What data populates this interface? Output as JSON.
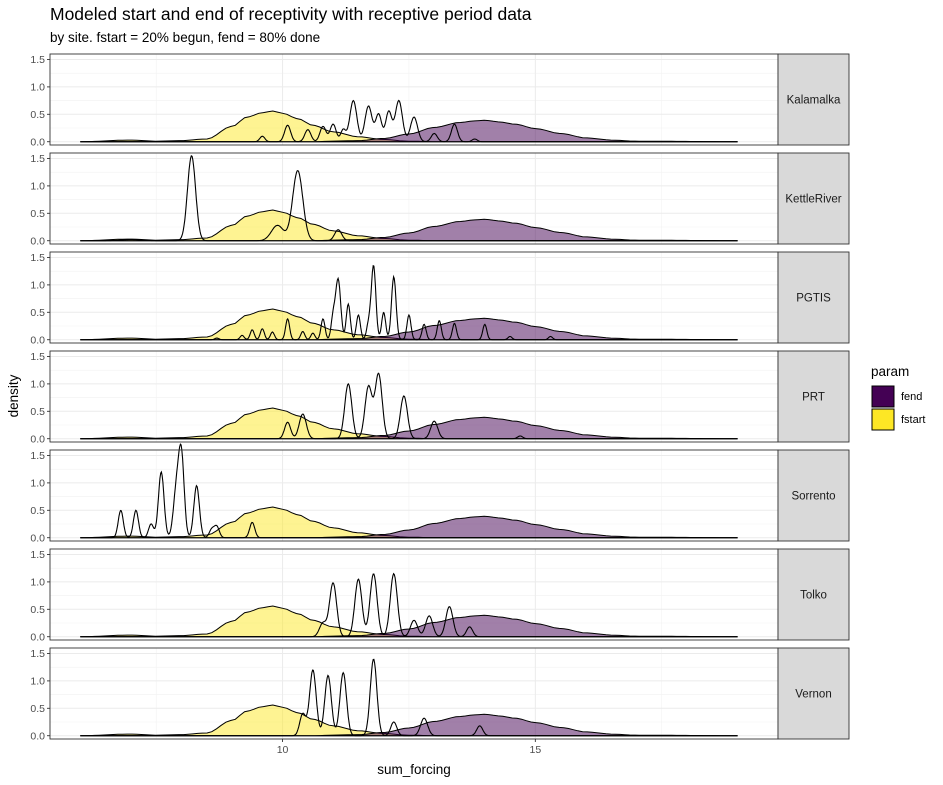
{
  "chart_data": {
    "type": "density",
    "title": "Modeled start and end of receptivity with receptive period data",
    "subtitle": "by site. fstart = 20% begun, fend = 80% done",
    "xlabel": "sum_forcing",
    "ylabel": "density",
    "xlim": [
      5.4,
      19.8
    ],
    "ylim": [
      -0.06,
      1.6
    ],
    "x_ticks": [
      10,
      15
    ],
    "y_ticks": [
      0.0,
      0.5,
      1.0,
      1.5
    ],
    "y_tick_labels": [
      "0.0",
      "0.5",
      "1.0",
      "1.5"
    ],
    "facets": [
      "Kalamalka",
      "KettleRiver",
      "PGTIS",
      "PRT",
      "Sorrento",
      "Tolko",
      "Vernon"
    ],
    "legend": {
      "title": "param",
      "position": "right",
      "entries": [
        {
          "label": "fend",
          "color": "#440154"
        },
        {
          "label": "fstart",
          "color": "#FDE725"
        }
      ]
    },
    "modeled_series": [
      {
        "name": "fstart",
        "color": "#FDE725",
        "alpha": 0.5,
        "x": [
          6.0,
          7.0,
          7.5,
          8.0,
          8.5,
          9.0,
          9.3,
          9.6,
          9.8,
          10.0,
          10.3,
          10.6,
          11.0,
          11.5,
          12.0,
          12.5,
          13.0,
          19.0
        ],
        "y": [
          0.0,
          0.03,
          0.01,
          0.02,
          0.05,
          0.28,
          0.45,
          0.53,
          0.56,
          0.52,
          0.42,
          0.3,
          0.18,
          0.09,
          0.04,
          0.01,
          0.0,
          0.0
        ]
      },
      {
        "name": "fend",
        "color": "#440154",
        "alpha": 0.5,
        "x": [
          6.0,
          10.5,
          11.5,
          12.0,
          12.5,
          13.0,
          13.5,
          13.8,
          14.0,
          14.3,
          14.6,
          15.0,
          15.5,
          16.0,
          16.5,
          17.0,
          19.0
        ],
        "y": [
          0.0,
          0.0,
          0.02,
          0.06,
          0.14,
          0.26,
          0.35,
          0.38,
          0.39,
          0.36,
          0.32,
          0.24,
          0.15,
          0.07,
          0.03,
          0.01,
          0.0
        ]
      }
    ],
    "observed_peaks": {
      "Kalamalka": [
        [
          9.6,
          0.1,
          0.05
        ],
        [
          10.1,
          0.3,
          0.06
        ],
        [
          10.5,
          0.22,
          0.06
        ],
        [
          10.8,
          0.28,
          0.06
        ],
        [
          11.0,
          0.32,
          0.06
        ],
        [
          11.2,
          0.22,
          0.05
        ],
        [
          11.4,
          0.75,
          0.07
        ],
        [
          11.7,
          0.65,
          0.07
        ],
        [
          11.9,
          0.5,
          0.06
        ],
        [
          12.1,
          0.55,
          0.06
        ],
        [
          12.3,
          0.75,
          0.07
        ],
        [
          12.6,
          0.45,
          0.07
        ],
        [
          13.0,
          0.15,
          0.06
        ],
        [
          13.4,
          0.32,
          0.06
        ],
        [
          13.8,
          0.05,
          0.05
        ]
      ],
      "KettleRiver": [
        [
          8.2,
          1.55,
          0.08
        ],
        [
          10.3,
          1.28,
          0.1
        ],
        [
          9.9,
          0.28,
          0.12
        ],
        [
          11.1,
          0.2,
          0.07
        ],
        [
          7.0,
          0.02,
          0.2
        ]
      ],
      "PGTIS": [
        [
          8.7,
          0.03,
          0.04
        ],
        [
          9.2,
          0.08,
          0.04
        ],
        [
          9.4,
          0.18,
          0.04
        ],
        [
          9.6,
          0.2,
          0.04
        ],
        [
          9.8,
          0.14,
          0.04
        ],
        [
          10.1,
          0.38,
          0.04
        ],
        [
          10.4,
          0.15,
          0.04
        ],
        [
          10.6,
          0.12,
          0.04
        ],
        [
          10.8,
          0.38,
          0.04
        ],
        [
          11.0,
          0.4,
          0.04
        ],
        [
          11.1,
          1.1,
          0.05
        ],
        [
          11.3,
          0.65,
          0.04
        ],
        [
          11.5,
          0.45,
          0.04
        ],
        [
          11.7,
          0.28,
          0.04
        ],
        [
          11.8,
          1.35,
          0.045
        ],
        [
          12.0,
          0.5,
          0.04
        ],
        [
          12.2,
          1.15,
          0.045
        ],
        [
          12.5,
          0.45,
          0.04
        ],
        [
          12.8,
          0.28,
          0.04
        ],
        [
          13.1,
          0.35,
          0.04
        ],
        [
          13.4,
          0.3,
          0.04
        ],
        [
          14.0,
          0.28,
          0.04
        ],
        [
          14.5,
          0.06,
          0.04
        ],
        [
          15.3,
          0.06,
          0.04
        ]
      ],
      "PRT": [
        [
          10.1,
          0.3,
          0.06
        ],
        [
          10.4,
          0.45,
          0.07
        ],
        [
          11.3,
          1.0,
          0.07
        ],
        [
          11.7,
          0.95,
          0.07
        ],
        [
          11.9,
          1.18,
          0.07
        ],
        [
          12.4,
          0.78,
          0.07
        ],
        [
          13.0,
          0.32,
          0.07
        ],
        [
          14.7,
          0.05,
          0.05
        ]
      ],
      "Sorrento": [
        [
          6.8,
          0.5,
          0.05
        ],
        [
          7.1,
          0.5,
          0.05
        ],
        [
          7.6,
          1.2,
          0.055
        ],
        [
          7.9,
          0.85,
          0.06
        ],
        [
          8.0,
          1.45,
          0.055
        ],
        [
          8.3,
          0.95,
          0.055
        ],
        [
          8.7,
          0.2,
          0.05
        ],
        [
          9.4,
          0.28,
          0.05
        ],
        [
          7.4,
          0.25,
          0.05
        ],
        [
          8.6,
          0.15,
          0.05
        ]
      ],
      "Tolko": [
        [
          11.0,
          0.98,
          0.07
        ],
        [
          11.5,
          1.05,
          0.07
        ],
        [
          11.8,
          1.15,
          0.07
        ],
        [
          12.2,
          1.15,
          0.07
        ],
        [
          12.9,
          0.38,
          0.07
        ],
        [
          13.3,
          0.55,
          0.07
        ],
        [
          13.7,
          0.18,
          0.06
        ],
        [
          10.8,
          0.25,
          0.07
        ],
        [
          12.6,
          0.3,
          0.07
        ]
      ],
      "Vernon": [
        [
          10.4,
          0.4,
          0.06
        ],
        [
          10.6,
          1.2,
          0.065
        ],
        [
          10.9,
          1.1,
          0.065
        ],
        [
          11.2,
          1.15,
          0.065
        ],
        [
          11.8,
          1.4,
          0.065
        ],
        [
          12.2,
          0.25,
          0.06
        ],
        [
          12.8,
          0.32,
          0.07
        ],
        [
          13.9,
          0.18,
          0.06
        ]
      ]
    }
  }
}
